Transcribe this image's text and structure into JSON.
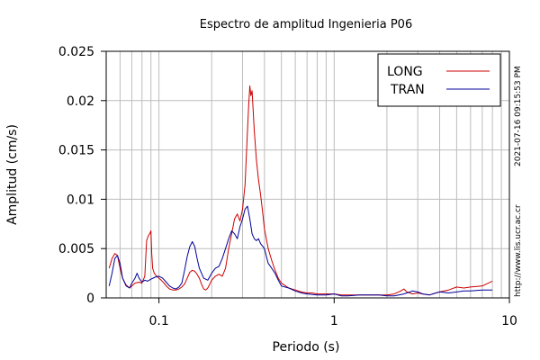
{
  "chart_data": {
    "type": "line",
    "title": "Espectro de amplitud Ingenieria P06",
    "xlabel": "Periodo (s)",
    "ylabel": "Amplitud (cm/s)",
    "xscale": "log",
    "xlim": [
      0.05,
      10
    ],
    "ylim": [
      0,
      0.025
    ],
    "x_ticks": [
      {
        "value": 0.1,
        "label": "0.1"
      },
      {
        "value": 1,
        "label": "1"
      },
      {
        "value": 10,
        "label": "10"
      }
    ],
    "y_ticks": [
      {
        "value": 0,
        "label": "0"
      },
      {
        "value": 0.005,
        "label": "0.005"
      },
      {
        "value": 0.01,
        "label": "0.01"
      },
      {
        "value": 0.015,
        "label": "0.015"
      },
      {
        "value": 0.02,
        "label": "0.02"
      },
      {
        "value": 0.025,
        "label": "0.025"
      }
    ],
    "grid": true,
    "legend_position": "top-right",
    "series": [
      {
        "name": "LONG",
        "color": "#cc0000",
        "points": [
          [
            0.052,
            0.003
          ],
          [
            0.054,
            0.004
          ],
          [
            0.056,
            0.0045
          ],
          [
            0.058,
            0.0043
          ],
          [
            0.06,
            0.003
          ],
          [
            0.062,
            0.002
          ],
          [
            0.065,
            0.0013
          ],
          [
            0.068,
            0.001
          ],
          [
            0.07,
            0.0012
          ],
          [
            0.073,
            0.0015
          ],
          [
            0.077,
            0.0016
          ],
          [
            0.08,
            0.0015
          ],
          [
            0.083,
            0.0022
          ],
          [
            0.085,
            0.0058
          ],
          [
            0.087,
            0.0063
          ],
          [
            0.089,
            0.0066
          ],
          [
            0.09,
            0.0068
          ],
          [
            0.091,
            0.0045
          ],
          [
            0.092,
            0.003
          ],
          [
            0.094,
            0.0025
          ],
          [
            0.097,
            0.0022
          ],
          [
            0.1,
            0.002
          ],
          [
            0.103,
            0.0018
          ],
          [
            0.107,
            0.0015
          ],
          [
            0.11,
            0.0012
          ],
          [
            0.115,
            0.0009
          ],
          [
            0.12,
            0.0008
          ],
          [
            0.125,
            0.0008
          ],
          [
            0.13,
            0.0009
          ],
          [
            0.135,
            0.0011
          ],
          [
            0.14,
            0.0014
          ],
          [
            0.145,
            0.002
          ],
          [
            0.15,
            0.0026
          ],
          [
            0.155,
            0.0028
          ],
          [
            0.16,
            0.0027
          ],
          [
            0.165,
            0.0024
          ],
          [
            0.17,
            0.002
          ],
          [
            0.175,
            0.0014
          ],
          [
            0.18,
            0.0009
          ],
          [
            0.185,
            0.0008
          ],
          [
            0.19,
            0.001
          ],
          [
            0.195,
            0.0014
          ],
          [
            0.2,
            0.0018
          ],
          [
            0.21,
            0.0022
          ],
          [
            0.22,
            0.0024
          ],
          [
            0.23,
            0.0022
          ],
          [
            0.24,
            0.003
          ],
          [
            0.25,
            0.005
          ],
          [
            0.26,
            0.0065
          ],
          [
            0.27,
            0.008
          ],
          [
            0.28,
            0.0085
          ],
          [
            0.29,
            0.0078
          ],
          [
            0.3,
            0.009
          ],
          [
            0.31,
            0.0115
          ],
          [
            0.32,
            0.017
          ],
          [
            0.325,
            0.0195
          ],
          [
            0.33,
            0.0215
          ],
          [
            0.335,
            0.0205
          ],
          [
            0.34,
            0.021
          ],
          [
            0.345,
            0.019
          ],
          [
            0.35,
            0.017
          ],
          [
            0.36,
            0.014
          ],
          [
            0.37,
            0.012
          ],
          [
            0.38,
            0.0105
          ],
          [
            0.39,
            0.0088
          ],
          [
            0.4,
            0.007
          ],
          [
            0.42,
            0.005
          ],
          [
            0.44,
            0.0038
          ],
          [
            0.46,
            0.0028
          ],
          [
            0.48,
            0.002
          ],
          [
            0.5,
            0.0015
          ],
          [
            0.55,
            0.001
          ],
          [
            0.6,
            0.0008
          ],
          [
            0.65,
            0.0006
          ],
          [
            0.7,
            0.0005
          ],
          [
            0.75,
            0.0005
          ],
          [
            0.8,
            0.0004
          ],
          [
            0.9,
            0.0004
          ],
          [
            1.0,
            0.0004
          ],
          [
            1.1,
            0.0003
          ],
          [
            1.2,
            0.0003
          ],
          [
            1.4,
            0.0003
          ],
          [
            1.6,
            0.0003
          ],
          [
            1.8,
            0.0003
          ],
          [
            2.0,
            0.0003
          ],
          [
            2.2,
            0.0004
          ],
          [
            2.4,
            0.0007
          ],
          [
            2.5,
            0.0009
          ],
          [
            2.6,
            0.0006
          ],
          [
            2.8,
            0.0004
          ],
          [
            3.0,
            0.0005
          ],
          [
            3.2,
            0.0004
          ],
          [
            3.5,
            0.0003
          ],
          [
            3.8,
            0.0005
          ],
          [
            4.0,
            0.0006
          ],
          [
            4.5,
            0.0008
          ],
          [
            5.0,
            0.0011
          ],
          [
            5.5,
            0.001
          ],
          [
            6.0,
            0.0011
          ],
          [
            7.0,
            0.0012
          ],
          [
            8.0,
            0.0017
          ]
        ]
      },
      {
        "name": "TRAN",
        "color": "#000099",
        "points": [
          [
            0.052,
            0.0012
          ],
          [
            0.054,
            0.0025
          ],
          [
            0.056,
            0.004
          ],
          [
            0.058,
            0.0043
          ],
          [
            0.06,
            0.0035
          ],
          [
            0.062,
            0.002
          ],
          [
            0.065,
            0.0012
          ],
          [
            0.068,
            0.001
          ],
          [
            0.07,
            0.0015
          ],
          [
            0.073,
            0.002
          ],
          [
            0.075,
            0.0025
          ],
          [
            0.077,
            0.002
          ],
          [
            0.08,
            0.0016
          ],
          [
            0.083,
            0.0018
          ],
          [
            0.086,
            0.0017
          ],
          [
            0.09,
            0.0019
          ],
          [
            0.095,
            0.0021
          ],
          [
            0.1,
            0.0022
          ],
          [
            0.105,
            0.002
          ],
          [
            0.11,
            0.0016
          ],
          [
            0.115,
            0.0012
          ],
          [
            0.12,
            0.001
          ],
          [
            0.125,
            0.0009
          ],
          [
            0.13,
            0.0011
          ],
          [
            0.135,
            0.0015
          ],
          [
            0.14,
            0.0028
          ],
          [
            0.145,
            0.0042
          ],
          [
            0.15,
            0.0052
          ],
          [
            0.155,
            0.0057
          ],
          [
            0.16,
            0.0052
          ],
          [
            0.165,
            0.004
          ],
          [
            0.17,
            0.003
          ],
          [
            0.175,
            0.0025
          ],
          [
            0.18,
            0.002
          ],
          [
            0.19,
            0.0018
          ],
          [
            0.2,
            0.0025
          ],
          [
            0.21,
            0.003
          ],
          [
            0.22,
            0.0032
          ],
          [
            0.23,
            0.004
          ],
          [
            0.24,
            0.005
          ],
          [
            0.25,
            0.006
          ],
          [
            0.26,
            0.0068
          ],
          [
            0.27,
            0.0065
          ],
          [
            0.28,
            0.006
          ],
          [
            0.29,
            0.0072
          ],
          [
            0.3,
            0.008
          ],
          [
            0.31,
            0.009
          ],
          [
            0.32,
            0.0093
          ],
          [
            0.33,
            0.008
          ],
          [
            0.34,
            0.0065
          ],
          [
            0.35,
            0.006
          ],
          [
            0.36,
            0.0058
          ],
          [
            0.37,
            0.006
          ],
          [
            0.38,
            0.0055
          ],
          [
            0.4,
            0.005
          ],
          [
            0.42,
            0.0035
          ],
          [
            0.44,
            0.003
          ],
          [
            0.46,
            0.0025
          ],
          [
            0.48,
            0.0018
          ],
          [
            0.5,
            0.0012
          ],
          [
            0.55,
            0.001
          ],
          [
            0.6,
            0.0007
          ],
          [
            0.65,
            0.0005
          ],
          [
            0.7,
            0.0004
          ],
          [
            0.8,
            0.0003
          ],
          [
            0.9,
            0.0003
          ],
          [
            1.0,
            0.0004
          ],
          [
            1.1,
            0.0002
          ],
          [
            1.2,
            0.0002
          ],
          [
            1.4,
            0.0003
          ],
          [
            1.6,
            0.0003
          ],
          [
            1.8,
            0.0003
          ],
          [
            2.0,
            0.0002
          ],
          [
            2.2,
            0.0002
          ],
          [
            2.5,
            0.0004
          ],
          [
            2.8,
            0.0007
          ],
          [
            3.0,
            0.0006
          ],
          [
            3.2,
            0.0004
          ],
          [
            3.5,
            0.0003
          ],
          [
            4.0,
            0.0006
          ],
          [
            4.5,
            0.0005
          ],
          [
            5.0,
            0.0006
          ],
          [
            5.5,
            0.0007
          ],
          [
            6.0,
            0.0007
          ],
          [
            7.0,
            0.0008
          ],
          [
            8.0,
            0.0008
          ]
        ]
      }
    ]
  },
  "side_text": {
    "timestamp": "2021-07-16 09:15:53 PM",
    "url": "http://www.lis.ucr.ac.cr"
  }
}
